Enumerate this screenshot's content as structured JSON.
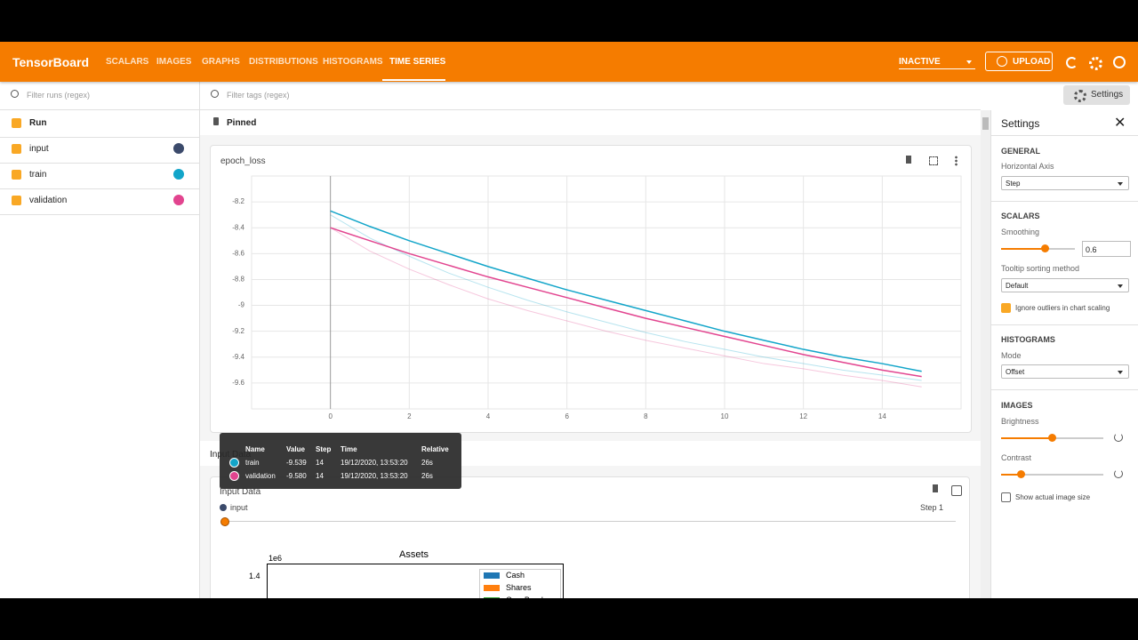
{
  "header": {
    "brand": "TensorBoard",
    "tabs": [
      "SCALARS",
      "IMAGES",
      "GRAPHS",
      "DISTRIBUTIONS",
      "HISTOGRAMS",
      "TIME SERIES"
    ],
    "status": "INACTIVE",
    "upload": "UPLOAD"
  },
  "sidebar": {
    "filter": "Filter runs (regex)",
    "all": "Run",
    "runs": [
      {
        "name": "input",
        "color": "#3b4a6b"
      },
      {
        "name": "train",
        "color": "#12a5c9"
      },
      {
        "name": "validation",
        "color": "#e2448f"
      }
    ]
  },
  "main": {
    "filter": "Filter tags (regex)",
    "settings_button": "Settings",
    "pinned": "Pinned",
    "section": "Input Data",
    "tooltip": {
      "columns": [
        "Name",
        "Value",
        "Step",
        "Time",
        "Relative"
      ],
      "rows": [
        [
          "train",
          "-9.539",
          "14",
          "19/12/2020, 13:53:20",
          "26s"
        ],
        [
          "validation",
          "-9.580",
          "14",
          "19/12/2020, 13:53:20",
          "26s"
        ]
      ]
    },
    "image_card": {
      "title": "Input Data",
      "run": "input",
      "step": "Step 1",
      "plot_title": "Assets",
      "offset": "1e6",
      "tick": "1.4",
      "legend": [
        "Cash",
        "Shares",
        "Gov. Bonds"
      ]
    }
  },
  "settings": {
    "title": "Settings",
    "general": {
      "heading": "GENERAL",
      "label": "Horizontal Axis",
      "value": "Step"
    },
    "scalars": {
      "heading": "SCALARS",
      "smoothing": "Smoothing",
      "smoothing_value": "0.6",
      "sorting": "Tooltip sorting method",
      "sorting_value": "Default",
      "outliers": "Ignore outliers in chart scaling"
    },
    "histograms": {
      "heading": "HISTOGRAMS",
      "label": "Mode",
      "value": "Offset"
    },
    "images": {
      "heading": "IMAGES",
      "brightness": "Brightness",
      "contrast": "Contrast",
      "actual": "Show actual image size"
    }
  },
  "chart_data": {
    "type": "line",
    "title": "epoch_loss",
    "x": [
      0,
      1,
      2,
      3,
      4,
      5,
      6,
      7,
      8,
      9,
      10,
      11,
      12,
      13,
      14,
      15
    ],
    "series": [
      {
        "name": "train",
        "color": "#12a5c9",
        "values": [
          -8.27,
          -8.39,
          -8.5,
          -8.6,
          -8.7,
          -8.79,
          -8.88,
          -8.96,
          -9.04,
          -9.12,
          -9.2,
          -9.27,
          -9.34,
          -9.4,
          -9.45,
          -9.51
        ],
        "raw_values": [
          -8.3,
          -8.48,
          -8.62,
          -8.75,
          -8.86,
          -8.96,
          -9.05,
          -9.13,
          -9.21,
          -9.28,
          -9.34,
          -9.4,
          -9.45,
          -9.5,
          -9.539,
          -9.58
        ]
      },
      {
        "name": "validation",
        "color": "#e2448f",
        "values": [
          -8.4,
          -8.5,
          -8.6,
          -8.69,
          -8.78,
          -8.86,
          -8.94,
          -9.02,
          -9.1,
          -9.17,
          -9.24,
          -9.31,
          -9.38,
          -9.44,
          -9.5,
          -9.55
        ],
        "raw_values": [
          -8.4,
          -8.58,
          -8.72,
          -8.84,
          -8.95,
          -9.04,
          -9.12,
          -9.2,
          -9.27,
          -9.33,
          -9.39,
          -9.45,
          -9.49,
          -9.54,
          -9.58,
          -9.63
        ]
      }
    ],
    "xlim": [
      -2,
      16
    ],
    "xticks": [
      0,
      2,
      4,
      6,
      8,
      10,
      12,
      14
    ],
    "ylim": [
      -9.8,
      -8.0
    ],
    "yticks": [
      -8.2,
      -8.4,
      -8.6,
      -8.8,
      -9,
      -9.2,
      -9.4,
      -9.6
    ],
    "grid": true
  }
}
